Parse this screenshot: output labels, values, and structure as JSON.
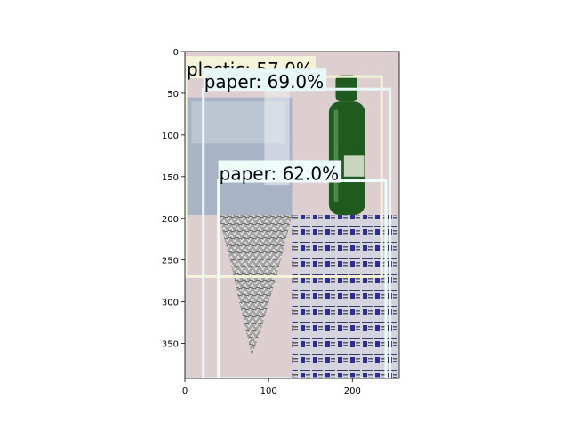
{
  "chart_data": {
    "type": "image-with-detections",
    "xlabel": "",
    "ylabel": "",
    "xlim": [
      0,
      256
    ],
    "ylim": [
      392,
      0
    ],
    "xticks": [
      0,
      100,
      200
    ],
    "yticks": [
      0,
      50,
      100,
      150,
      200,
      250,
      300,
      350
    ],
    "grid": false,
    "image": {
      "regions": [
        {
          "name": "background-pink",
          "x0": 0,
          "y0": 0,
          "x1": 256,
          "y1": 392,
          "color": "#ddcfcf"
        },
        {
          "name": "plastic-sheet",
          "x0": 3,
          "y0": 55,
          "x1": 128,
          "y1": 196,
          "color": "#a9b3c6"
        },
        {
          "name": "newspaper",
          "x0": 128,
          "y0": 196,
          "x1": 256,
          "y1": 392,
          "color": "#c9c9d6"
        }
      ],
      "bottle_color": "#1f5a1f",
      "foil_color": "#9c9c9c"
    },
    "detections": [
      {
        "label": "plastic: 57.0%",
        "x0": 1,
        "y0": 30,
        "x1": 235,
        "y1": 270,
        "color": "#f4f4d8"
      },
      {
        "label": "paper: 69.0%",
        "x0": 22,
        "y0": 45,
        "x1": 245,
        "y1": 392,
        "color": "#e8f8f8"
      },
      {
        "label": "paper: 62.0%",
        "x0": 40,
        "y0": 155,
        "x1": 240,
        "y1": 392,
        "color": "#eefcfc"
      }
    ]
  }
}
